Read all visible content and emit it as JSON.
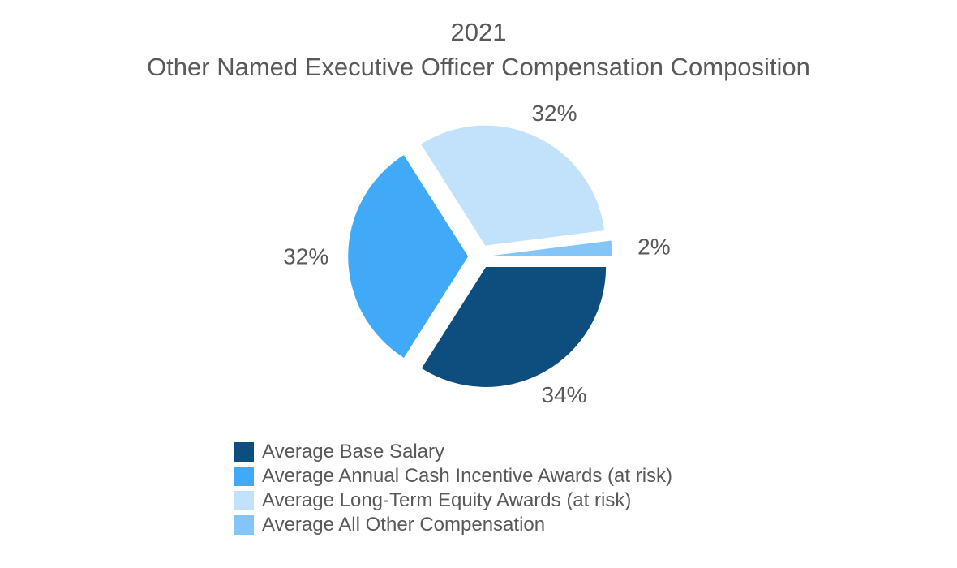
{
  "title": {
    "line1": "2021",
    "line2": "Other Named Executive Officer Compensation Composition"
  },
  "chart_data": {
    "type": "pie",
    "title": "2021 Other Named Executive Officer Compensation Composition",
    "categories": [
      "Average Base Salary",
      "Average Annual Cash Incentive Awards (at risk)",
      "Average Long-Term Equity Awards (at risk)",
      "Average All Other Compensation"
    ],
    "values": [
      34,
      32,
      32,
      2
    ],
    "value_labels": [
      "34%",
      "32%",
      "32%",
      "2%"
    ],
    "colors": [
      "#0E4E7F",
      "#41AAF8",
      "#C2E2FB",
      "#84C5F8"
    ],
    "start_angle_deg": 0,
    "direction": "clockwise",
    "explode_pct": 10,
    "label_position": "outside",
    "legend_position": "bottom-left",
    "text_color": "#595959",
    "background": "#FFFFFF"
  }
}
